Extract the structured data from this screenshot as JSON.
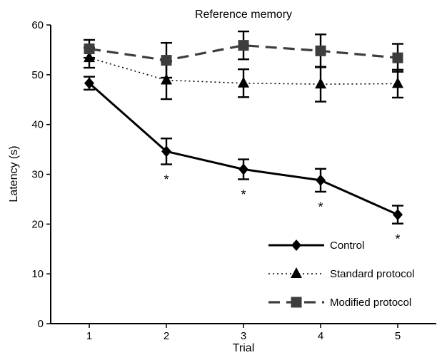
{
  "chart_data": {
    "type": "line",
    "title": "Reference memory",
    "xlabel": "Trial",
    "ylabel": "Latency (s)",
    "x": [
      1,
      2,
      3,
      4,
      5
    ],
    "xlim": [
      0.5,
      5.5
    ],
    "ylim": [
      0,
      60
    ],
    "yticks": [
      0,
      10,
      20,
      30,
      40,
      50,
      60
    ],
    "xticks": [
      1,
      2,
      3,
      4,
      5
    ],
    "grid": false,
    "legend_position": "bottom-right",
    "series": [
      {
        "name": "Control",
        "marker": "diamond",
        "line": "solid",
        "values": [
          48.3,
          34.6,
          31.0,
          28.8,
          21.9
        ],
        "errors": [
          1.3,
          2.6,
          2.0,
          2.3,
          1.8
        ]
      },
      {
        "name": "Standard protocol",
        "marker": "triangle",
        "line": "dotted",
        "values": [
          53.4,
          48.9,
          48.3,
          48.1,
          48.2
        ],
        "errors": [
          2.0,
          3.8,
          2.8,
          3.5,
          2.8
        ]
      },
      {
        "name": "Modified protocol",
        "marker": "square",
        "line": "dashed",
        "values": [
          55.2,
          52.9,
          55.9,
          54.8,
          53.4
        ],
        "errors": [
          1.8,
          3.5,
          2.8,
          3.3,
          2.8
        ]
      }
    ],
    "annotations": [
      {
        "x": 2,
        "y": 29.8,
        "text": "*"
      },
      {
        "x": 3,
        "y": 26.8,
        "text": "*"
      },
      {
        "x": 4,
        "y": 24.3,
        "text": "*"
      },
      {
        "x": 5,
        "y": 17.8,
        "text": "*"
      }
    ]
  }
}
